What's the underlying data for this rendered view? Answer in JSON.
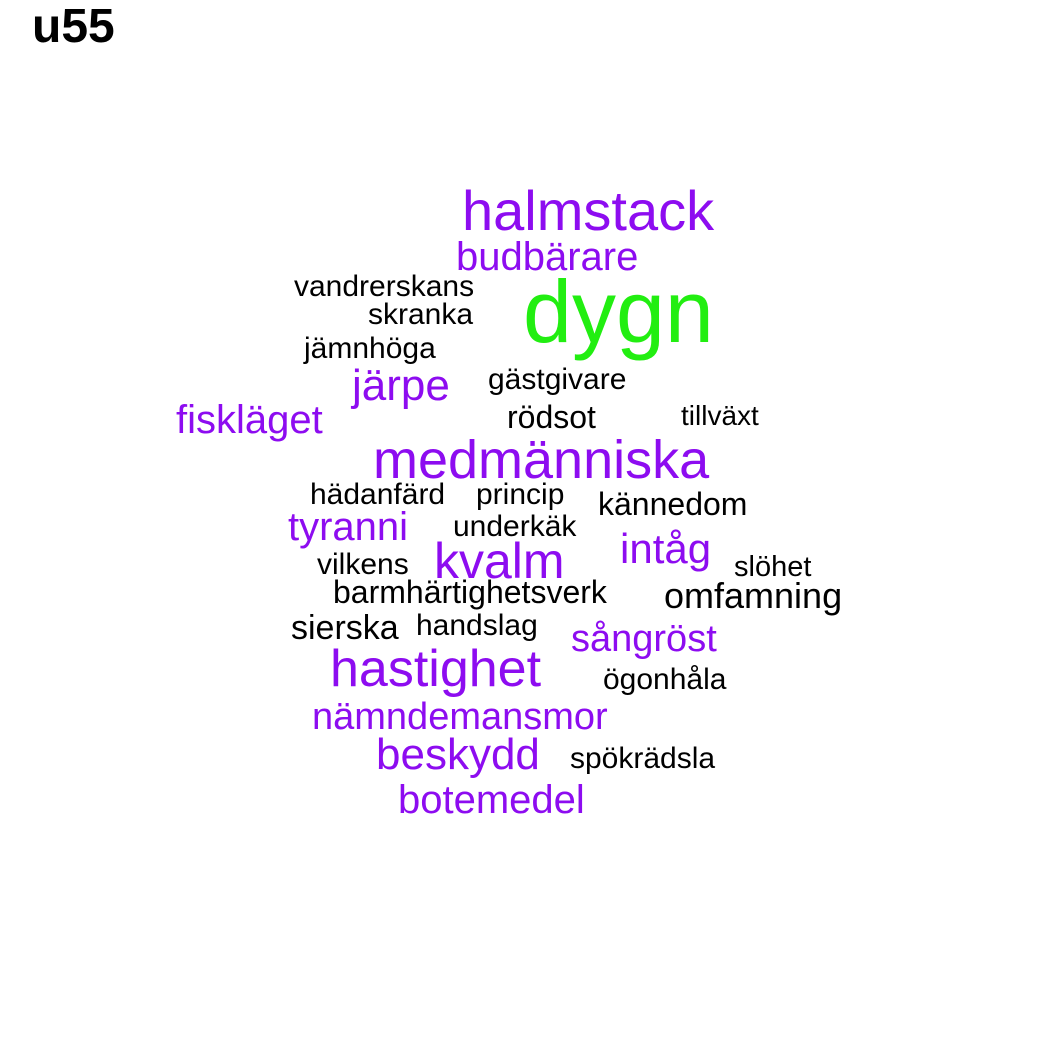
{
  "title": "u55",
  "colors": {
    "largest": "#22ee11",
    "medium": "#8d0cf0",
    "small": "#000000"
  },
  "words": [
    {
      "text": "dygn",
      "group": "largest"
    },
    {
      "text": "halmstack",
      "group": "medium"
    },
    {
      "text": "budbärare",
      "group": "medium"
    },
    {
      "text": "vandrerskans",
      "group": "small"
    },
    {
      "text": "skranka",
      "group": "small"
    },
    {
      "text": "jämnhöga",
      "group": "small"
    },
    {
      "text": "järpe",
      "group": "medium"
    },
    {
      "text": "gästgivare",
      "group": "small"
    },
    {
      "text": "fiskläget",
      "group": "medium"
    },
    {
      "text": "rödsot",
      "group": "small"
    },
    {
      "text": "tillväxt",
      "group": "small"
    },
    {
      "text": "medmänniska",
      "group": "medium"
    },
    {
      "text": "hädanfärd",
      "group": "small"
    },
    {
      "text": "princip",
      "group": "small"
    },
    {
      "text": "kännedom",
      "group": "small"
    },
    {
      "text": "tyranni",
      "group": "medium"
    },
    {
      "text": "underkäk",
      "group": "small"
    },
    {
      "text": "intåg",
      "group": "medium"
    },
    {
      "text": "vilkens",
      "group": "small"
    },
    {
      "text": "kvalm",
      "group": "medium"
    },
    {
      "text": "slöhet",
      "group": "small"
    },
    {
      "text": "barmhärtighetsverk",
      "group": "small"
    },
    {
      "text": "omfamning",
      "group": "small"
    },
    {
      "text": "sierska",
      "group": "small"
    },
    {
      "text": "handslag",
      "group": "small"
    },
    {
      "text": "sångröst",
      "group": "medium"
    },
    {
      "text": "hastighet",
      "group": "medium"
    },
    {
      "text": "ögonhåla",
      "group": "small"
    },
    {
      "text": "nämndemansmor",
      "group": "medium"
    },
    {
      "text": "beskydd",
      "group": "medium"
    },
    {
      "text": "spökrädsla",
      "group": "small"
    },
    {
      "text": "botemedel",
      "group": "medium"
    }
  ]
}
